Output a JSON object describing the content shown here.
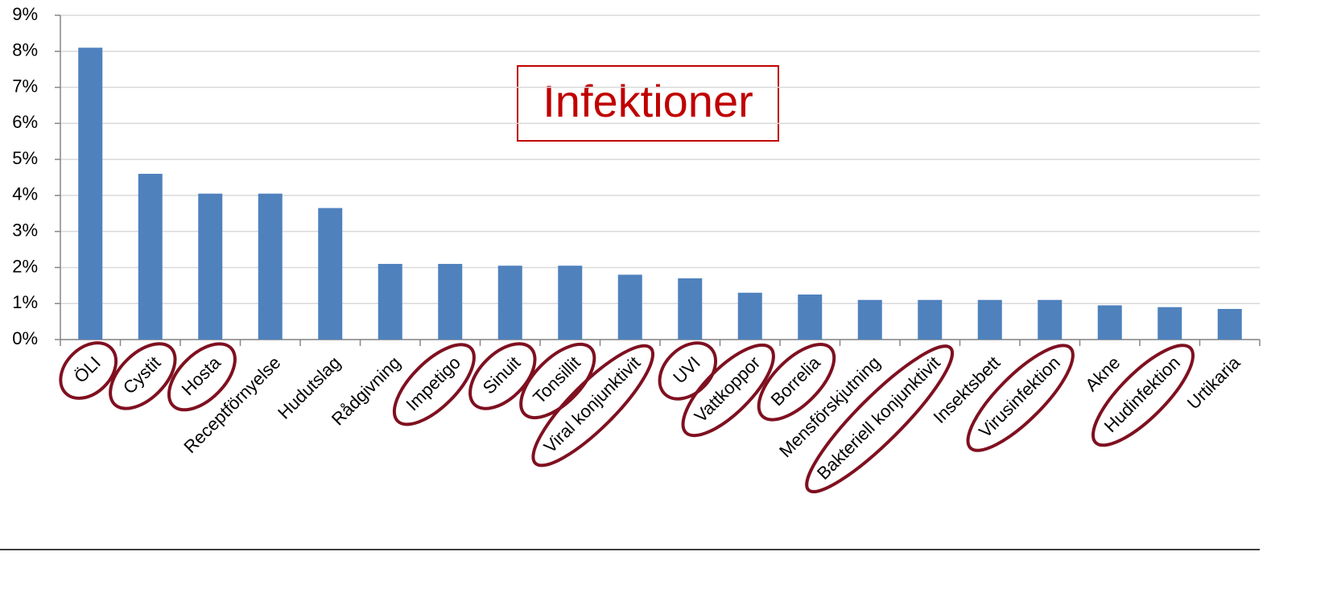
{
  "chart_data": {
    "type": "bar",
    "annotation": "Infektioner",
    "categories": [
      "ÖLI",
      "Cystit",
      "Hosta",
      "Receptförnyelse",
      "Hudutslag",
      "Rådgivning",
      "Impetigo",
      "Sinuit",
      "Tonsillit",
      "Viral konjunktivit",
      "UVI",
      "Vattkoppor",
      "Borrelia",
      "Mensförskjutning",
      "Bakteriell konjunktivit",
      "Insektsbett",
      "Virusinfektion",
      "Akne",
      "Hudinfektion",
      "Urtikaria"
    ],
    "values": [
      8.1,
      4.6,
      4.05,
      4.05,
      3.65,
      2.1,
      2.1,
      2.05,
      2.05,
      1.8,
      1.7,
      1.3,
      1.25,
      1.1,
      1.1,
      1.1,
      1.1,
      0.95,
      0.9,
      0.85
    ],
    "circled": [
      true,
      true,
      true,
      false,
      false,
      false,
      true,
      true,
      true,
      true,
      true,
      true,
      true,
      false,
      true,
      false,
      true,
      false,
      true,
      false
    ],
    "color": "#4f81bd",
    "circle_color": "#7f1020",
    "ylim": [
      0,
      9
    ],
    "yticks": [
      {
        "value": 0,
        "label": "0%"
      },
      {
        "value": 1,
        "label": "1%"
      },
      {
        "value": 2,
        "label": "2%"
      },
      {
        "value": 3,
        "label": "3%"
      },
      {
        "value": 4,
        "label": "4%"
      },
      {
        "value": 5,
        "label": "5%"
      },
      {
        "value": 6,
        "label": "6%"
      },
      {
        "value": 7,
        "label": "7%"
      },
      {
        "value": 8,
        "label": "8%"
      },
      {
        "value": 9,
        "label": "9%"
      }
    ],
    "grid": true
  }
}
